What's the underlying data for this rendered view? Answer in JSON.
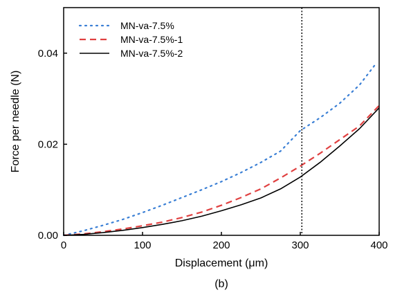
{
  "chart_data": {
    "type": "line",
    "xlabel": "Displacement (μm)",
    "ylabel": "Force per needle (N)",
    "caption": "(b)",
    "xlim": [
      0,
      400
    ],
    "ylim": [
      0,
      0.05
    ],
    "xticks": [
      0,
      100,
      200,
      300,
      400
    ],
    "xtick_labels": [
      "0",
      "100",
      "200",
      "300",
      "400"
    ],
    "yticks": [
      0,
      0.02,
      0.04
    ],
    "ytick_labels": [
      "0.00",
      "0.02",
      "0.04"
    ],
    "legend_position": "top-left",
    "grid": false,
    "reference_line_x": 302,
    "series": [
      {
        "name": "MN-va-7.5%",
        "color": "#3a7fd5",
        "style": "dotted",
        "x": [
          0,
          25,
          50,
          75,
          100,
          125,
          150,
          175,
          200,
          225,
          250,
          275,
          300,
          325,
          350,
          375,
          395
        ],
        "y": [
          0.0,
          0.001,
          0.0022,
          0.0035,
          0.005,
          0.0066,
          0.0083,
          0.01,
          0.0118,
          0.0138,
          0.016,
          0.0185,
          0.023,
          0.0258,
          0.029,
          0.033,
          0.0375
        ]
      },
      {
        "name": "MN-va-7.5%-1",
        "color": "#e04040",
        "style": "dashed",
        "x": [
          0,
          25,
          50,
          75,
          100,
          125,
          150,
          175,
          200,
          225,
          250,
          275,
          300,
          325,
          350,
          375,
          400
        ],
        "y": [
          0.0,
          0.0003,
          0.0008,
          0.0014,
          0.0021,
          0.0029,
          0.0039,
          0.0051,
          0.0066,
          0.0083,
          0.0102,
          0.0126,
          0.0152,
          0.018,
          0.021,
          0.024,
          0.0285
        ]
      },
      {
        "name": "MN-va-7.5%-2",
        "color": "#000000",
        "style": "solid",
        "x": [
          0,
          25,
          50,
          75,
          100,
          125,
          150,
          175,
          200,
          225,
          250,
          275,
          300,
          325,
          350,
          375,
          400
        ],
        "y": [
          0.0,
          0.0002,
          0.0006,
          0.0011,
          0.0017,
          0.0024,
          0.0032,
          0.0042,
          0.0054,
          0.0067,
          0.0082,
          0.0102,
          0.0128,
          0.016,
          0.0196,
          0.0234,
          0.028
        ]
      }
    ]
  }
}
